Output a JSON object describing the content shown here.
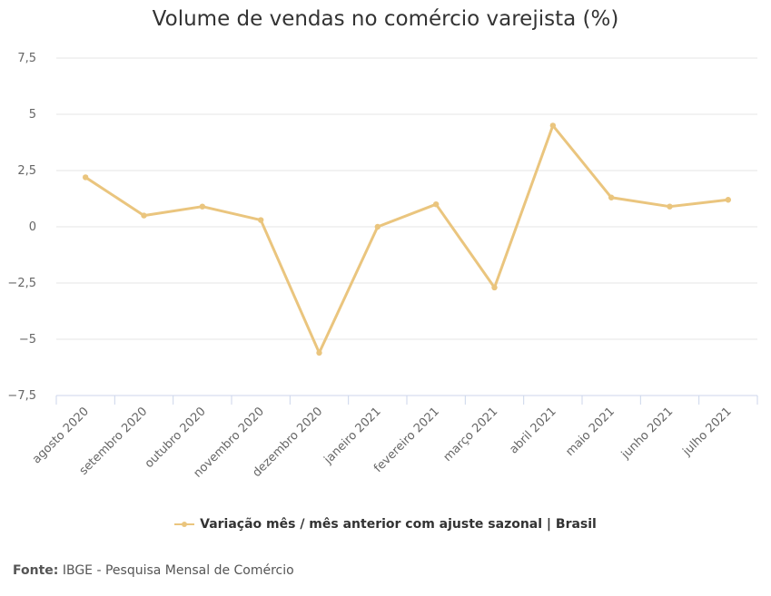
{
  "chart_data": {
    "type": "line",
    "title": "Volume de vendas no comércio varejista (%)",
    "categories": [
      "agosto 2020",
      "setembro 2020",
      "outubro 2020",
      "novembro 2020",
      "dezembro 2020",
      "janeiro 2021",
      "fevereiro 2021",
      "março 2021",
      "abril 2021",
      "maio 2021",
      "junho 2021",
      "julho 2021"
    ],
    "series": [
      {
        "name": "Variação mês / mês anterior com ajuste sazonal | Brasil",
        "values": [
          2.2,
          0.5,
          0.9,
          0.3,
          -5.6,
          0.0,
          1.0,
          -2.7,
          4.5,
          1.3,
          0.9,
          1.2
        ],
        "color": "#eac57e"
      }
    ],
    "yticks": [
      7.5,
      5,
      2.5,
      0,
      -2.5,
      -5,
      -7.5
    ],
    "ytick_labels": [
      "7,5",
      "5",
      "2,5",
      "0",
      "−2,5",
      "−5",
      "−7,5"
    ],
    "ylim": [
      -7.5,
      7.5
    ],
    "xlabel": "",
    "ylabel": "",
    "grid": true,
    "legend": "bottom-center"
  },
  "source": {
    "label": "Fonte:",
    "text": "IBGE - Pesquisa Mensal de Comércio"
  }
}
